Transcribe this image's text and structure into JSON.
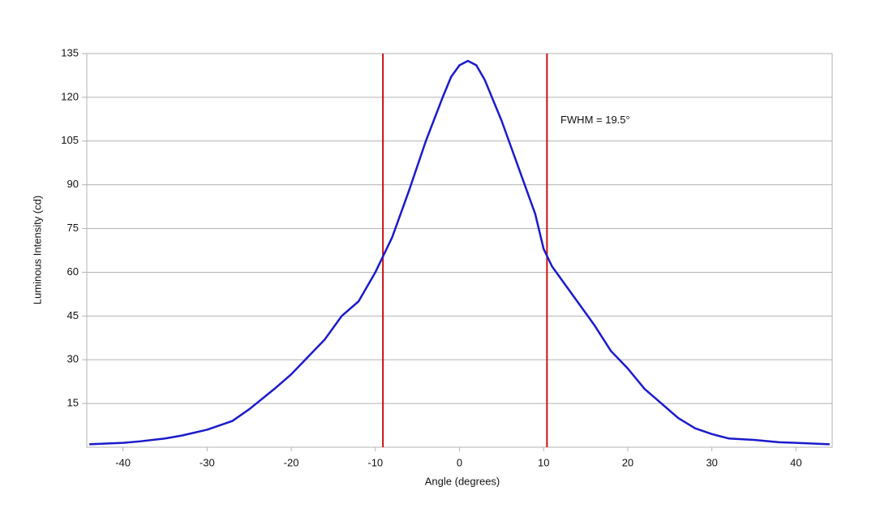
{
  "chart_data": {
    "type": "line",
    "x_label": "Angle (degrees)",
    "y_label": "Luminous Intensity (cd)",
    "x": [
      -44,
      -40,
      -38,
      -35,
      -33,
      -30,
      -27,
      -25,
      -22,
      -20,
      -18,
      -16,
      -14,
      -12,
      -10,
      -9,
      -8,
      -6,
      -4,
      -2,
      -1,
      0,
      1,
      2,
      3,
      5,
      7,
      9,
      10,
      11,
      12,
      14,
      16,
      18,
      20,
      22,
      24,
      26,
      28,
      30,
      32,
      35,
      38,
      40,
      44
    ],
    "series": [
      {
        "name": "Luminous Intensity",
        "color": "#1a1acc",
        "values": [
          1,
          1.5,
          2,
          3,
          4,
          6,
          9,
          13,
          20,
          25,
          31,
          37,
          45,
          50,
          60,
          66,
          72,
          88,
          105,
          120,
          127,
          131,
          132.5,
          131,
          126,
          112,
          96,
          80,
          68,
          62,
          58,
          50,
          42,
          33,
          27,
          20,
          15,
          10,
          6.5,
          4.5,
          3,
          2.5,
          1.7,
          1.5,
          1
        ]
      }
    ],
    "vlines": [
      -9.1,
      10.4
    ],
    "vline_color": "#cc1111",
    "annotation": "FWHM = 19.5°",
    "annotation_x": 12,
    "annotation_y": 112,
    "xlim": [
      -44.3,
      44.3
    ],
    "xticks": [
      -40,
      -30,
      -20,
      -10,
      0,
      10,
      20,
      30,
      40
    ],
    "ylim": [
      0,
      135
    ],
    "yticks": [
      15,
      30,
      45,
      60,
      75,
      90,
      105,
      120,
      135
    ],
    "grid": true
  }
}
